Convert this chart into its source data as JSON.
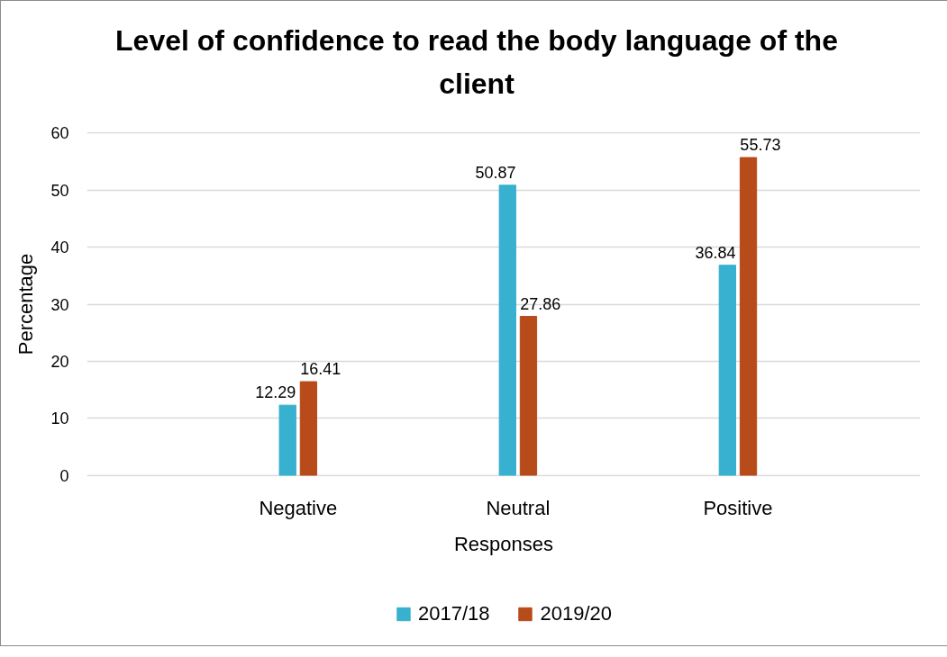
{
  "chart_data": {
    "type": "bar",
    "title": "Level of confidence to read the body language of the client",
    "xlabel": "Responses",
    "ylabel": "Percentage",
    "categories": [
      "Negative",
      "Neutral",
      "Positive"
    ],
    "series": [
      {
        "name": "2017/18",
        "color": "#38b0cf",
        "values": [
          12.29,
          50.87,
          36.84
        ]
      },
      {
        "name": "2019/20",
        "color": "#b84b1a",
        "values": [
          16.41,
          27.86,
          55.73
        ]
      }
    ],
    "ylim": [
      0,
      60
    ],
    "yticks": [
      0,
      10,
      20,
      30,
      40,
      50,
      60
    ],
    "grid": "y",
    "legend": "bottom",
    "data_labels": true
  }
}
